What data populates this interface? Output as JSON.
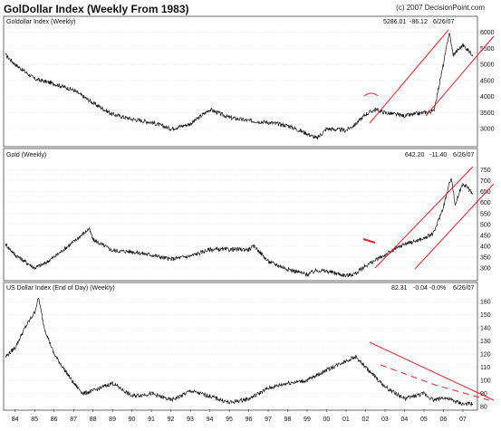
{
  "header": {
    "title": "GolDollar Index (Weekly From 1983)",
    "copyright": "(c) 2007 DecisionPoint.com"
  },
  "colors": {
    "price_line": "#111111",
    "annotation": "#e8202a",
    "grid": "#d0d0d0",
    "frame": "#444444"
  },
  "chart_data": [
    {
      "type": "line",
      "title": "Goldollar Index (Weekly)",
      "stats": [
        "5286.01",
        "-86.12",
        "6/26/07"
      ],
      "ylim": [
        2500,
        6100
      ],
      "yticks": [
        3000,
        3500,
        4000,
        4500,
        5000,
        5500,
        6000
      ],
      "ytick_labels": [
        "3000",
        "3500",
        "4000",
        "4500",
        "5000",
        "5500",
        "6000"
      ],
      "series": [
        {
          "x": [
            1983.5,
            1984,
            1985,
            1986,
            1987,
            1988,
            1989,
            1990,
            1991,
            1992,
            1993,
            1994,
            1995,
            1996,
            1997,
            1998,
            1999,
            1999.5,
            2000,
            2001,
            2001.5,
            2002,
            2002.5,
            2003,
            2004,
            2005,
            2005.5,
            2006,
            2006.3,
            2006.5,
            2007,
            2007.5
          ],
          "values": [
            5300,
            5000,
            4550,
            4400,
            4200,
            3800,
            3450,
            3300,
            3200,
            3000,
            3150,
            3600,
            3350,
            3250,
            3200,
            3100,
            2850,
            2700,
            3000,
            2950,
            3150,
            3450,
            3600,
            3500,
            3400,
            3500,
            3550,
            5000,
            6000,
            5300,
            5600,
            5300
          ]
        }
      ]
    },
    {
      "type": "line",
      "title": "Gold (Weekly)",
      "stats": [
        "642.20",
        "-11.40",
        "6/26/07"
      ],
      "ylim": [
        250,
        790
      ],
      "yticks": [
        300,
        350,
        400,
        450,
        500,
        550,
        600,
        650,
        700,
        750
      ],
      "ytick_labels": [
        "300",
        "350",
        "400",
        "450",
        "500",
        "550",
        "600",
        "650",
        "700",
        "750"
      ],
      "series": [
        {
          "x": [
            1983.5,
            1984,
            1984.5,
            1985,
            1985.5,
            1986,
            1987,
            1987.8,
            1988,
            1989,
            1990,
            1991,
            1992,
            1993,
            1994,
            1995,
            1996,
            1996.3,
            1997,
            1998,
            1999,
            1999.5,
            2000,
            2001,
            2001.5,
            2002,
            2003,
            2004,
            2005,
            2005.5,
            2006,
            2006.4,
            2006.6,
            2007,
            2007.5
          ],
          "values": [
            410,
            360,
            330,
            300,
            320,
            350,
            420,
            480,
            430,
            380,
            375,
            360,
            340,
            355,
            385,
            385,
            385,
            400,
            330,
            295,
            270,
            290,
            285,
            265,
            275,
            310,
            360,
            410,
            435,
            460,
            580,
            720,
            590,
            690,
            642
          ]
        }
      ]
    },
    {
      "type": "line",
      "title": "US Dollar Index (End of Day) (Weekly)",
      "stats": [
        "82.31",
        "-0.04",
        "-0.0%",
        "6/26/07"
      ],
      "ylim": [
        78,
        165
      ],
      "yticks": [
        80,
        90,
        100,
        110,
        120,
        130,
        140,
        150,
        160
      ],
      "ytick_labels": [
        "80",
        "90",
        "100",
        "110",
        "120",
        "130",
        "140",
        "150",
        "160"
      ],
      "xticks": [
        "84",
        "85",
        "86",
        "87",
        "88",
        "89",
        "90",
        "91",
        "92",
        "93",
        "94",
        "95",
        "96",
        "97",
        "98",
        "99",
        "00",
        "01",
        "02",
        "03",
        "04",
        "05",
        "06",
        "07"
      ],
      "series": [
        {
          "x": [
            1983.5,
            1984,
            1984.5,
            1985,
            1985.2,
            1985.5,
            1986,
            1987,
            1987.5,
            1988,
            1989,
            1990,
            1991,
            1992,
            1992.5,
            1993,
            1994,
            1995,
            1996,
            1997,
            1998,
            1999,
            2000,
            2001,
            2001.5,
            2002,
            2003,
            2004,
            2005,
            2005.5,
            2006,
            2007,
            2007.5
          ],
          "values": [
            118,
            125,
            140,
            152,
            163,
            140,
            120,
            98,
            90,
            92,
            98,
            88,
            90,
            85,
            88,
            92,
            88,
            83,
            86,
            94,
            98,
            100,
            108,
            115,
            118,
            110,
            95,
            86,
            90,
            85,
            87,
            82,
            82
          ]
        }
      ]
    }
  ]
}
